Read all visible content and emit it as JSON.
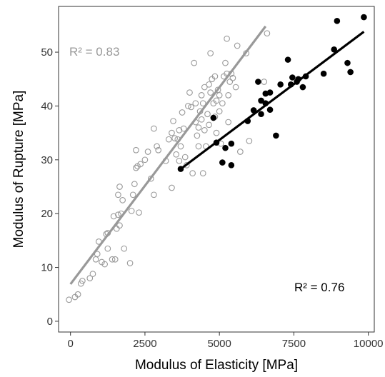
{
  "chart_data": {
    "type": "scatter",
    "title": "",
    "xlabel": "Modulus of Elasticity [MPa]",
    "ylabel": "Modulus of Rupture [MPa]",
    "xlim": [
      -400,
      10200
    ],
    "ylim": [
      -2,
      58.5
    ],
    "xticks": [
      0,
      2500,
      5000,
      7500,
      10000
    ],
    "yticks": [
      0,
      10,
      20,
      30,
      40,
      50
    ],
    "grid": false,
    "legend": "none",
    "series": [
      {
        "marker": "open-circle",
        "color": "#999999",
        "r2_label": "R²  = 0.83",
        "fit": {
          "x": [
            0,
            6550
          ],
          "y": [
            6.9,
            54.8
          ]
        },
        "points": [
          [
            -50,
            4.0
          ],
          [
            150,
            4.5
          ],
          [
            250,
            5.0
          ],
          [
            350,
            7.0
          ],
          [
            400,
            7.5
          ],
          [
            650,
            8.0
          ],
          [
            750,
            8.8
          ],
          [
            850,
            11.5
          ],
          [
            900,
            12.5
          ],
          [
            950,
            14.8
          ],
          [
            1050,
            11.0
          ],
          [
            1150,
            10.6
          ],
          [
            1200,
            16.2
          ],
          [
            1250,
            16.4
          ],
          [
            1250,
            13.5
          ],
          [
            1400,
            11.5
          ],
          [
            1450,
            19.5
          ],
          [
            1500,
            11.5
          ],
          [
            1550,
            17.2
          ],
          [
            1600,
            19.8
          ],
          [
            1600,
            23.5
          ],
          [
            1650,
            25.0
          ],
          [
            1650,
            17.8
          ],
          [
            1700,
            20.0
          ],
          [
            1750,
            22.5
          ],
          [
            1800,
            13.5
          ],
          [
            2000,
            10.8
          ],
          [
            2050,
            20.5
          ],
          [
            2100,
            23.5
          ],
          [
            2150,
            25.5
          ],
          [
            2200,
            28.5
          ],
          [
            2200,
            31.8
          ],
          [
            2250,
            28.8
          ],
          [
            2300,
            20.2
          ],
          [
            2350,
            29.2
          ],
          [
            2500,
            30.0
          ],
          [
            2600,
            31.5
          ],
          [
            2700,
            26.5
          ],
          [
            2800,
            23.5
          ],
          [
            2800,
            35.8
          ],
          [
            2900,
            32.5
          ],
          [
            2950,
            31.8
          ],
          [
            3200,
            29.8
          ],
          [
            3300,
            33.8
          ],
          [
            3400,
            35.0
          ],
          [
            3400,
            24.8
          ],
          [
            3450,
            37.2
          ],
          [
            3500,
            34.0
          ],
          [
            3550,
            31.0
          ],
          [
            3600,
            33.8
          ],
          [
            3650,
            35.5
          ],
          [
            3650,
            29.8
          ],
          [
            3700,
            32.5
          ],
          [
            3750,
            38.8
          ],
          [
            3800,
            35.8
          ],
          [
            3850,
            30.5
          ],
          [
            3900,
            29.0
          ],
          [
            3950,
            40.0
          ],
          [
            4000,
            42.5
          ],
          [
            4050,
            39.8
          ],
          [
            4100,
            27.5
          ],
          [
            4150,
            48.0
          ],
          [
            4200,
            37.0
          ],
          [
            4200,
            40.5
          ],
          [
            4250,
            34.5
          ],
          [
            4300,
            36.0
          ],
          [
            4300,
            32.5
          ],
          [
            4350,
            39.0
          ],
          [
            4400,
            42.0
          ],
          [
            4400,
            37.5
          ],
          [
            4450,
            40.5
          ],
          [
            4450,
            27.5
          ],
          [
            4500,
            35.5
          ],
          [
            4500,
            43.5
          ],
          [
            4550,
            32.5
          ],
          [
            4600,
            38.5
          ],
          [
            4650,
            36.5
          ],
          [
            4650,
            44.0
          ],
          [
            4700,
            49.8
          ],
          [
            4700,
            42.5
          ],
          [
            4750,
            45.0
          ],
          [
            4800,
            40.5
          ],
          [
            4850,
            45.5
          ],
          [
            4850,
            38.0
          ],
          [
            4900,
            35.0
          ],
          [
            4900,
            41.0
          ],
          [
            4950,
            43.0
          ],
          [
            5000,
            39.0
          ],
          [
            5000,
            42.0
          ],
          [
            5050,
            33.0
          ],
          [
            5100,
            40.5
          ],
          [
            5150,
            45.5
          ],
          [
            5200,
            48.0
          ],
          [
            5250,
            46.0
          ],
          [
            5250,
            52.5
          ],
          [
            5300,
            37.0
          ],
          [
            5300,
            42.0
          ],
          [
            5350,
            44.5
          ],
          [
            5400,
            46.0
          ],
          [
            5450,
            45.2
          ],
          [
            5550,
            43.5
          ],
          [
            5600,
            51.2
          ],
          [
            5700,
            31.5
          ],
          [
            5900,
            49.8
          ],
          [
            6000,
            33.5
          ],
          [
            6600,
            53.5
          ],
          [
            6500,
            44.5
          ]
        ]
      },
      {
        "marker": "filled-circle",
        "color": "#000000",
        "r2_label": "R²  = 0.76",
        "fit": {
          "x": [
            3700,
            9850
          ],
          "y": [
            28.3,
            53.8
          ]
        },
        "points": [
          [
            3700,
            28.3
          ],
          [
            4800,
            37.8
          ],
          [
            4900,
            33.2
          ],
          [
            5100,
            29.5
          ],
          [
            5200,
            32.2
          ],
          [
            5400,
            33.0
          ],
          [
            5400,
            29.0
          ],
          [
            5950,
            37.2
          ],
          [
            6150,
            39.2
          ],
          [
            6300,
            44.5
          ],
          [
            6400,
            38.5
          ],
          [
            6400,
            41.0
          ],
          [
            6550,
            40.5
          ],
          [
            6550,
            42.3
          ],
          [
            6700,
            39.3
          ],
          [
            6700,
            42.5
          ],
          [
            6900,
            34.5
          ],
          [
            7050,
            44.0
          ],
          [
            7300,
            48.6
          ],
          [
            7400,
            44.0
          ],
          [
            7450,
            45.3
          ],
          [
            7600,
            44.5
          ],
          [
            7650,
            45.0
          ],
          [
            7800,
            43.5
          ],
          [
            7900,
            45.5
          ],
          [
            8500,
            46.0
          ],
          [
            8850,
            50.5
          ],
          [
            8950,
            55.8
          ],
          [
            9300,
            48.0
          ],
          [
            9400,
            46.3
          ],
          [
            9850,
            56.5
          ]
        ]
      }
    ]
  }
}
